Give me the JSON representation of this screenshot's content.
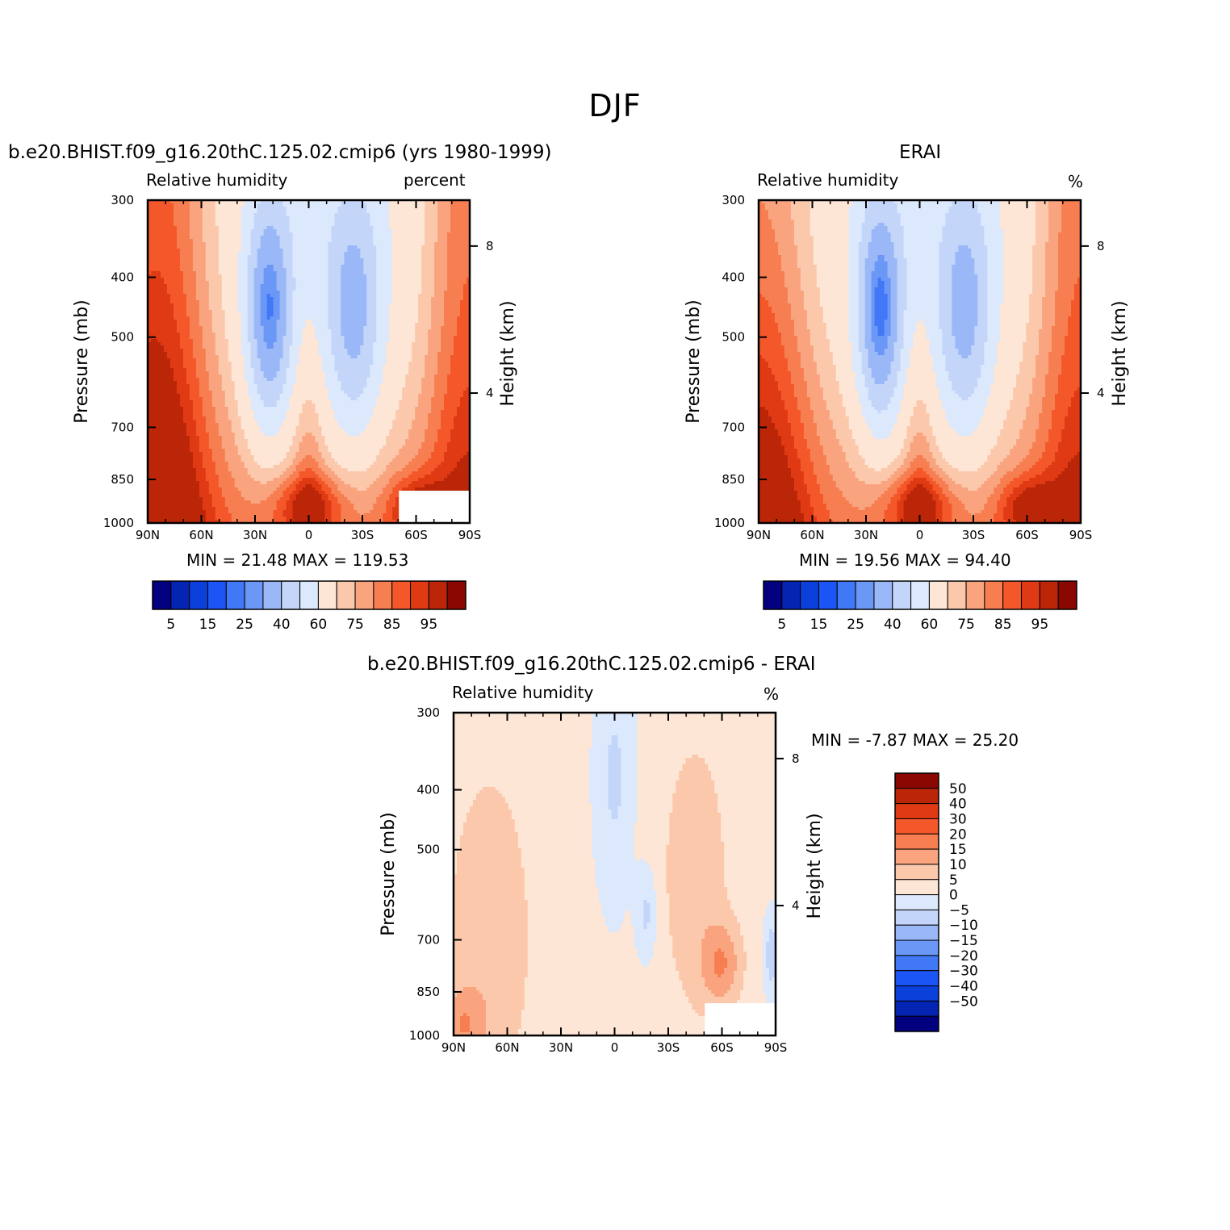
{
  "figure": {
    "title": "DJF"
  },
  "panels": [
    {
      "case_title": "b.e20.BHIST.f09_g16.20thC.125.02.cmip6 (yrs 1980-1999)",
      "left_label": "Relative humidity",
      "right_label": "percent",
      "y_label": "Pressure (mb)",
      "y2_label": "Height (km)",
      "stats": "MIN =   21.48   MAX =  119.53",
      "colorbar_ticks": [
        "5",
        "15",
        "25",
        "40",
        "60",
        "75",
        "85",
        "95"
      ]
    },
    {
      "case_title": "ERAI",
      "left_label": "Relative humidity",
      "right_label": "%",
      "y_label": "Pressure (mb)",
      "y2_label": "Height (km)",
      "stats": "MIN =   19.56   MAX =   94.40",
      "colorbar_ticks": [
        "5",
        "15",
        "25",
        "40",
        "60",
        "75",
        "85",
        "95"
      ]
    },
    {
      "case_title": "b.e20.BHIST.f09_g16.20thC.125.02.cmip6 - ERAI",
      "left_label": "Relative humidity",
      "right_label": "%",
      "y_label": "Pressure (mb)",
      "y2_label": "Height (km)",
      "stats": "MIN =   -7.87   MAX =   25.20",
      "colorbar_ticks": [
        "50",
        "40",
        "30",
        "20",
        "15",
        "10",
        "5",
        "0",
        "-5",
        "-10",
        "-15",
        "-20",
        "-30",
        "-40",
        "-50"
      ]
    }
  ],
  "chart_data": [
    {
      "type": "heatmap",
      "title": "b.e20.BHIST.f09_g16.20thC.125.02.cmip6 (yrs 1980-1999)",
      "xlabel": "",
      "ylabel": "Pressure (mb)",
      "x_ticks": [
        "90N",
        "60N",
        "30N",
        "0",
        "30S",
        "60S",
        "90S"
      ],
      "x": [
        90,
        60,
        30,
        0,
        -30,
        -60,
        -90
      ],
      "y_ticks": [
        "300",
        "400",
        "500",
        "700",
        "850",
        "1000"
      ],
      "y": [
        300,
        400,
        500,
        700,
        850,
        1000
      ],
      "y_scale": "log",
      "y2_ticks": [
        "8",
        "4"
      ],
      "y2": [
        8,
        4
      ],
      "min": 21.48,
      "max": 119.53,
      "colorbar_levels": [
        5,
        10,
        15,
        20,
        25,
        30,
        40,
        50,
        60,
        70,
        75,
        80,
        85,
        90,
        95
      ],
      "colorbar_colors": [
        "#02007f",
        "#0424b4",
        "#0b40db",
        "#1c55f5",
        "#4078f5",
        "#6b97f6",
        "#9ab8f8",
        "#c3d6fa",
        "#dce8fc",
        "#fde6d5",
        "#fcc8ac",
        "#f9a47e",
        "#f77e50",
        "#f4572a",
        "#df3a13",
        "#bb2508",
        "#8b0802"
      ]
    },
    {
      "type": "heatmap",
      "title": "ERAI",
      "xlabel": "",
      "ylabel": "Pressure (mb)",
      "x_ticks": [
        "90N",
        "60N",
        "30N",
        "0",
        "30S",
        "60S",
        "90S"
      ],
      "x": [
        90,
        60,
        30,
        0,
        -30,
        -60,
        -90
      ],
      "y_ticks": [
        "300",
        "400",
        "500",
        "700",
        "850",
        "1000"
      ],
      "y": [
        300,
        400,
        500,
        700,
        850,
        1000
      ],
      "y_scale": "log",
      "y2_ticks": [
        "8",
        "4"
      ],
      "y2": [
        8,
        4
      ],
      "min": 19.56,
      "max": 94.4,
      "colorbar_levels": [
        5,
        10,
        15,
        20,
        25,
        30,
        40,
        50,
        60,
        70,
        75,
        80,
        85,
        90,
        95
      ],
      "colorbar_colors": [
        "#02007f",
        "#0424b4",
        "#0b40db",
        "#1c55f5",
        "#4078f5",
        "#6b97f6",
        "#9ab8f8",
        "#c3d6fa",
        "#dce8fc",
        "#fde6d5",
        "#fcc8ac",
        "#f9a47e",
        "#f77e50",
        "#f4572a",
        "#df3a13",
        "#bb2508",
        "#8b0802"
      ]
    },
    {
      "type": "heatmap",
      "title": "b.e20.BHIST.f09_g16.20thC.125.02.cmip6 - ERAI",
      "xlabel": "",
      "ylabel": "Pressure (mb)",
      "x_ticks": [
        "90N",
        "60N",
        "30N",
        "0",
        "30S",
        "60S",
        "90S"
      ],
      "x": [
        90,
        60,
        30,
        0,
        -30,
        -60,
        -90
      ],
      "y_ticks": [
        "300",
        "400",
        "500",
        "700",
        "850",
        "1000"
      ],
      "y": [
        300,
        400,
        500,
        700,
        850,
        1000
      ],
      "y_scale": "log",
      "y2_ticks": [
        "8",
        "4"
      ],
      "y2": [
        8,
        4
      ],
      "min": -7.87,
      "max": 25.2,
      "colorbar_levels": [
        -50,
        -40,
        -30,
        -20,
        -15,
        -10,
        -5,
        0,
        5,
        10,
        15,
        20,
        30,
        40,
        50
      ],
      "colorbar_colors": [
        "#02007f",
        "#0424b4",
        "#0b40db",
        "#1c55f5",
        "#4078f5",
        "#6b97f6",
        "#9ab8f8",
        "#c3d6fa",
        "#dce8fc",
        "#fde6d5",
        "#fcc8ac",
        "#f9a47e",
        "#f77e50",
        "#f4572a",
        "#df3a13",
        "#bb2508",
        "#8b0802"
      ]
    }
  ]
}
